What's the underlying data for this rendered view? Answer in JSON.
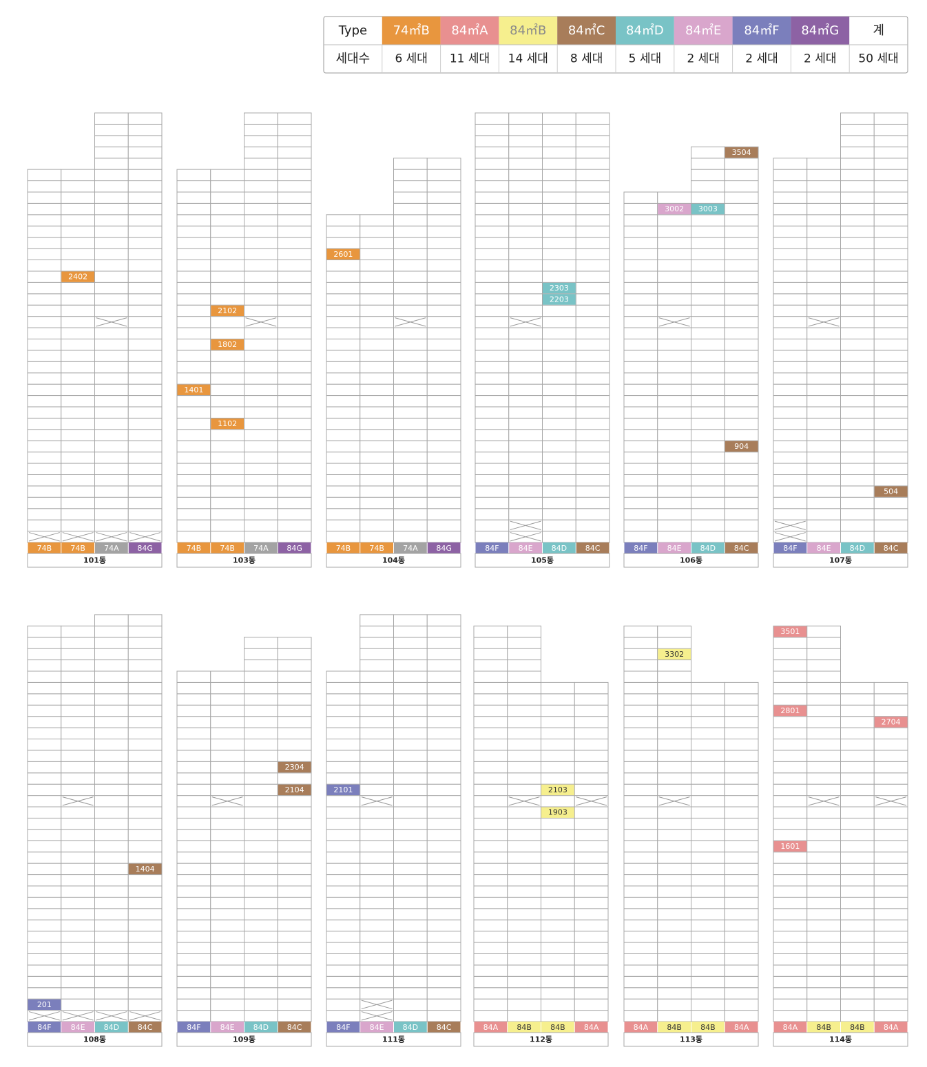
{
  "legend": {
    "header": "Type",
    "count_header": "세대수",
    "total_header": "계",
    "total": "50 세대",
    "types": [
      {
        "name": "74㎡B",
        "color": "#e8963e",
        "count": "6 세대"
      },
      {
        "name": "84㎡A",
        "color": "#e89090",
        "count": "11 세대"
      },
      {
        "name": "84㎡B",
        "color": "#f6ef8e",
        "count": "14 세대"
      },
      {
        "name": "84㎡C",
        "color": "#a87d5a",
        "count": "8 세대"
      },
      {
        "name": "84㎡D",
        "color": "#79c3c6",
        "count": "5 세대"
      },
      {
        "name": "84㎡E",
        "color": "#d9a6cc",
        "count": "2 세대"
      },
      {
        "name": "84㎡F",
        "color": "#7b7fbc",
        "count": "2 세대"
      },
      {
        "name": "84㎡G",
        "color": "#8d62a4",
        "count": "2 세대"
      }
    ]
  },
  "buildings": [
    {
      "name": "101동",
      "columns": [
        {
          "type": "74B",
          "color": "#e8963e"
        },
        {
          "type": "74B",
          "color": "#e8963e"
        },
        {
          "type": "74A",
          "color": "#a3a3a3"
        },
        {
          "type": "84G",
          "color": "#8d62a4"
        }
      ],
      "units": [
        "2402"
      ]
    },
    {
      "name": "103동",
      "columns": [
        {
          "type": "74B",
          "color": "#e8963e"
        },
        {
          "type": "74B",
          "color": "#e8963e"
        },
        {
          "type": "74A",
          "color": "#a3a3a3"
        },
        {
          "type": "84G",
          "color": "#8d62a4"
        }
      ],
      "units": [
        "2102",
        "1802",
        "1401",
        "1102"
      ]
    },
    {
      "name": "104동",
      "columns": [
        {
          "type": "74B",
          "color": "#e8963e"
        },
        {
          "type": "74B",
          "color": "#e8963e"
        },
        {
          "type": "74A",
          "color": "#a3a3a3"
        },
        {
          "type": "84G",
          "color": "#8d62a4"
        }
      ],
      "units": [
        "2601"
      ]
    },
    {
      "name": "105동",
      "columns": [
        {
          "type": "84F",
          "color": "#7b7fbc"
        },
        {
          "type": "84E",
          "color": "#d9a6cc"
        },
        {
          "type": "84D",
          "color": "#79c3c6"
        },
        {
          "type": "84C",
          "color": "#a87d5a"
        }
      ],
      "units": [
        "2303",
        "2203"
      ]
    },
    {
      "name": "106동",
      "columns": [
        {
          "type": "84F",
          "color": "#7b7fbc"
        },
        {
          "type": "84E",
          "color": "#d9a6cc"
        },
        {
          "type": "84D",
          "color": "#79c3c6"
        },
        {
          "type": "84C",
          "color": "#a87d5a"
        }
      ],
      "units": [
        "3504",
        "3002",
        "3003",
        "904"
      ]
    },
    {
      "name": "107동",
      "columns": [
        {
          "type": "84F",
          "color": "#7b7fbc"
        },
        {
          "type": "84E",
          "color": "#d9a6cc"
        },
        {
          "type": "84D",
          "color": "#79c3c6"
        },
        {
          "type": "84C",
          "color": "#a87d5a"
        }
      ],
      "units": [
        "504"
      ]
    },
    {
      "name": "108동",
      "columns": [
        {
          "type": "84F",
          "color": "#7b7fbc"
        },
        {
          "type": "84E",
          "color": "#d9a6cc"
        },
        {
          "type": "84D",
          "color": "#79c3c6"
        },
        {
          "type": "84C",
          "color": "#a87d5a"
        }
      ],
      "units": [
        "1404",
        "201"
      ]
    },
    {
      "name": "109동",
      "columns": [
        {
          "type": "84F",
          "color": "#7b7fbc"
        },
        {
          "type": "84E",
          "color": "#d9a6cc"
        },
        {
          "type": "84D",
          "color": "#79c3c6"
        },
        {
          "type": "84C",
          "color": "#a87d5a"
        }
      ],
      "units": [
        "2304",
        "2104"
      ]
    },
    {
      "name": "111동",
      "columns": [
        {
          "type": "84F",
          "color": "#7b7fbc"
        },
        {
          "type": "84E",
          "color": "#d9a6cc"
        },
        {
          "type": "84D",
          "color": "#79c3c6"
        },
        {
          "type": "84C",
          "color": "#a87d5a"
        }
      ],
      "units": [
        "2101"
      ]
    },
    {
      "name": "112동",
      "columns": [
        {
          "type": "84A",
          "color": "#e89090"
        },
        {
          "type": "84B",
          "color": "#f6ef8e"
        },
        {
          "type": "84B",
          "color": "#f6ef8e"
        },
        {
          "type": "84A",
          "color": "#e89090"
        }
      ],
      "units": [
        "2103",
        "1903"
      ]
    },
    {
      "name": "113동",
      "columns": [
        {
          "type": "84A",
          "color": "#e89090"
        },
        {
          "type": "84B",
          "color": "#f6ef8e"
        },
        {
          "type": "84B",
          "color": "#f6ef8e"
        },
        {
          "type": "84A",
          "color": "#e89090"
        }
      ],
      "units": [
        "3302"
      ]
    },
    {
      "name": "114동",
      "columns": [
        {
          "type": "84A",
          "color": "#e89090"
        },
        {
          "type": "84B",
          "color": "#f6ef8e"
        },
        {
          "type": "84B",
          "color": "#f6ef8e"
        },
        {
          "type": "84A",
          "color": "#e89090"
        }
      ],
      "units": [
        "3501",
        "2801",
        "2704",
        "1601"
      ]
    }
  ]
}
